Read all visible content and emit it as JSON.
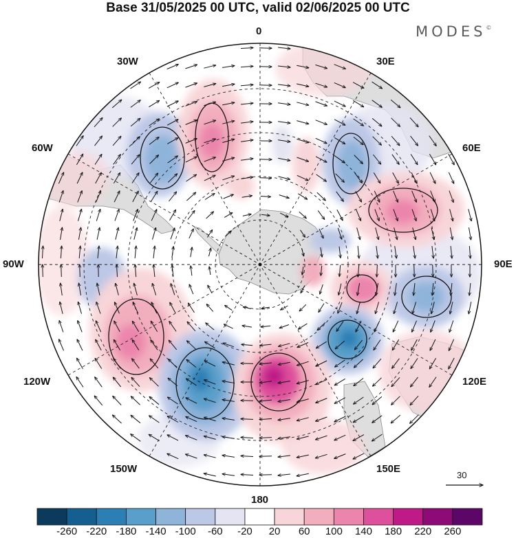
{
  "title": "Base 31/05/2025 00 UTC, valid 02/06/2025 00 UTC",
  "brand": "MODES",
  "brand_mark": "©",
  "longitude_labels": {
    "lon_0": "0",
    "lon_30e": "30E",
    "lon_60e": "60E",
    "lon_90e": "90E",
    "lon_120e": "120E",
    "lon_150e": "150E",
    "lon_180": "180",
    "lon_150w": "150W",
    "lon_120w": "120W",
    "lon_90w": "90W",
    "lon_60w": "60W",
    "lon_30w": "30W"
  },
  "reference_vector": "30",
  "colorbar": {
    "ticks": [
      "-260",
      "-220",
      "-180",
      "-140",
      "-100",
      "-60",
      "-20",
      "20",
      "60",
      "100",
      "140",
      "180",
      "220",
      "260"
    ],
    "colors": [
      "#0b3a5c",
      "#145f8f",
      "#2b7fb5",
      "#5a9fcb",
      "#8fb4da",
      "#bcc8e6",
      "#e4e4f2",
      "#ffffff",
      "#f8d5d8",
      "#f2aebd",
      "#ec85ac",
      "#de4f9c",
      "#bf1a88",
      "#8d0a77",
      "#5c0668"
    ]
  },
  "colors": {
    "ocean": "#ffffff",
    "land": "#dedede",
    "grid": "#222222"
  }
}
